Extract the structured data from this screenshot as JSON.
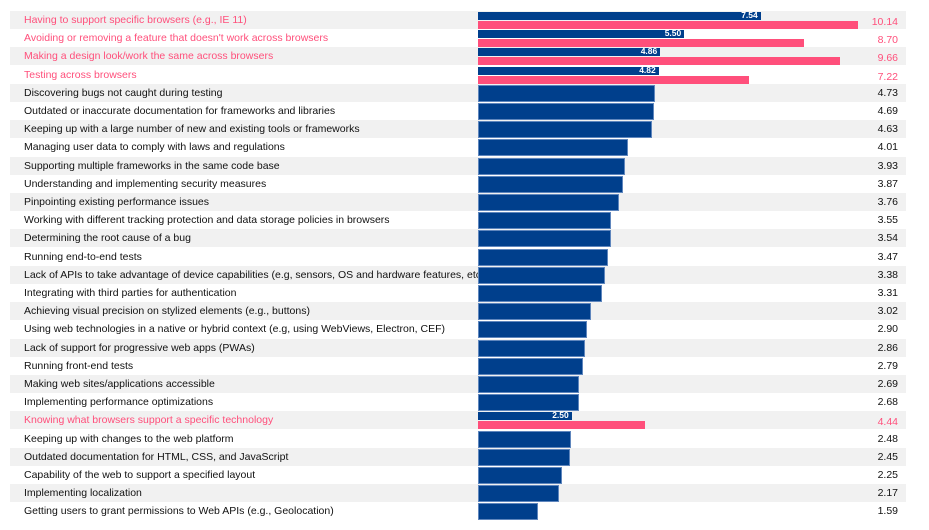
{
  "chart_data": {
    "type": "bar",
    "orientation": "horizontal",
    "colors": {
      "primary": "#003f8c",
      "highlight": "#ff4f7b"
    },
    "xlim": [
      0,
      10.5
    ],
    "grid": false,
    "categories": [
      "Having to support specific browsers (e.g., IE 11)",
      "Avoiding or removing a feature that doesn't work across browsers",
      "Making a design look/work the same across browsers",
      "Testing across browsers",
      "Discovering bugs not caught during testing",
      "Outdated or inaccurate documentation for frameworks and libraries",
      "Keeping up with a large number of new and existing tools or frameworks",
      "Managing user data to comply with laws and regulations",
      "Supporting multiple frameworks in the same code base",
      "Understanding and implementing security measures",
      "Pinpointing existing performance issues",
      "Working with different tracking protection and data storage policies in browsers",
      "Determining the root cause of a bug",
      "Running end-to-end tests",
      "Lack of APIs to take advantage of device capabilities (e.g, sensors, OS and hardware features, etc.)",
      "Integrating with third parties for authentication",
      "Achieving visual precision on stylized elements (e.g., buttons)",
      "Using web technologies in a native or hybrid context (e.g, using WebViews, Electron, CEF)",
      "Lack of support for progressive web apps (PWAs)",
      "Running front-end tests",
      "Making web sites/applications accessible",
      "Implementing performance optimizations",
      "Knowing what browsers support a specific technology",
      "Keeping up with changes to the web platform",
      "Outdated documentation for HTML, CSS, and JavaScript",
      "Capability of the web to support a specified layout",
      "Implementing localization",
      "Getting users to grant permissions to Web APIs (e.g., Geolocation)"
    ],
    "series": [
      {
        "values": [
          7.54,
          5.5,
          4.86,
          4.82,
          4.73,
          4.69,
          4.63,
          4.01,
          3.93,
          3.87,
          3.76,
          3.55,
          3.54,
          3.47,
          3.38,
          3.31,
          3.02,
          2.9,
          2.86,
          2.79,
          2.69,
          2.68,
          2.5,
          2.48,
          2.45,
          2.25,
          2.17,
          1.59
        ]
      },
      {
        "values": [
          10.14,
          8.7,
          9.66,
          7.22,
          null,
          null,
          null,
          null,
          null,
          null,
          null,
          null,
          null,
          null,
          null,
          null,
          null,
          null,
          null,
          null,
          null,
          null,
          4.44,
          null,
          null,
          null,
          null,
          null
        ]
      }
    ],
    "value_labels": [
      "10.14",
      "8.70",
      "9.66",
      "7.22",
      "4.73",
      "4.69",
      "4.63",
      "4.01",
      "3.93",
      "3.87",
      "3.76",
      "3.55",
      "3.54",
      "3.47",
      "3.38",
      "3.31",
      "3.02",
      "2.90",
      "2.86",
      "2.79",
      "2.69",
      "2.68",
      "4.44",
      "2.48",
      "2.45",
      "2.25",
      "2.17",
      "1.59"
    ],
    "inner_labels": [
      "7.54",
      "5.50",
      "4.86",
      "4.82",
      null,
      null,
      null,
      null,
      null,
      null,
      null,
      null,
      null,
      null,
      null,
      null,
      null,
      null,
      null,
      null,
      null,
      null,
      "2.50",
      null,
      null,
      null,
      null,
      null
    ]
  }
}
